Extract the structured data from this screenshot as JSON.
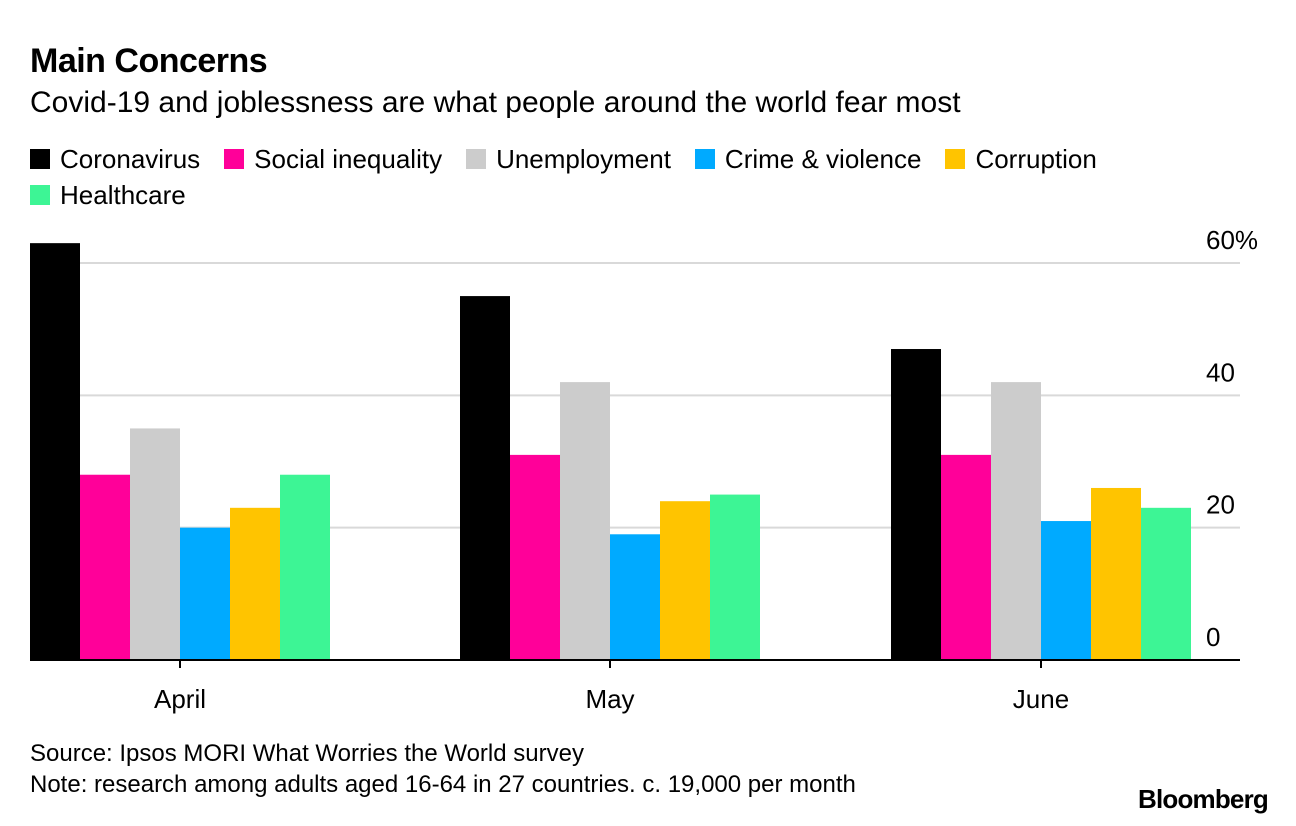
{
  "chart_data": {
    "type": "bar",
    "title": "Main Concerns",
    "subtitle": "Covid-19 and joblessness are what people around the world fear most",
    "categories": [
      "April",
      "May",
      "June"
    ],
    "series": [
      {
        "name": "Coronavirus",
        "color": "#000000",
        "values": [
          63,
          55,
          47
        ]
      },
      {
        "name": "Social inequality",
        "color": "#ff0099",
        "values": [
          28,
          31,
          31
        ]
      },
      {
        "name": "Unemployment",
        "color": "#cccccc",
        "values": [
          35,
          42,
          42
        ]
      },
      {
        "name": "Crime & violence",
        "color": "#00aaff",
        "values": [
          20,
          19,
          21
        ]
      },
      {
        "name": "Corruption",
        "color": "#ffc400",
        "values": [
          23,
          24,
          26
        ]
      },
      {
        "name": "Healthcare",
        "color": "#3df595",
        "values": [
          28,
          25,
          23
        ]
      }
    ],
    "ylim": [
      0,
      60
    ],
    "yticks": [
      0,
      20,
      40,
      60
    ],
    "ytick_labels": [
      "0",
      "20",
      "40",
      "60%"
    ],
    "xlabel": "",
    "ylabel": "",
    "grid": true,
    "legend_position": "top-left"
  },
  "footer": {
    "source": "Source: Ipsos MORI What Worries the World survey",
    "note": "Note: research among adults aged 16-64 in 27 countries. c. 19,000 per month",
    "brand": "Bloomberg"
  }
}
